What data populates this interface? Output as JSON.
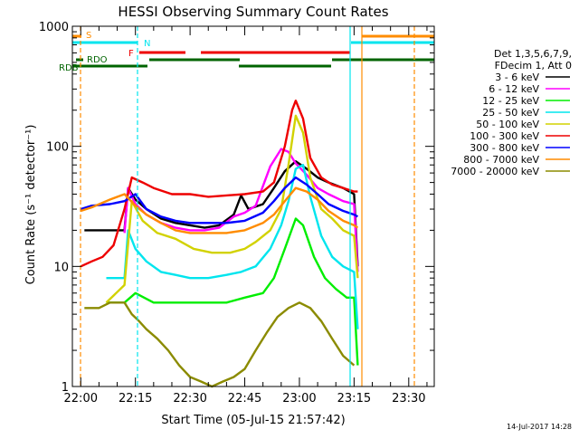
{
  "chart_data": {
    "type": "line",
    "title": "HESSI Observing Summary Count Rates",
    "xlabel": "Start Time (05-Jul-15 21:57:42)",
    "ylabel": "Count Rate (s⁻¹ detector⁻¹)",
    "y_scale": "log",
    "ylim": [
      1,
      1000
    ],
    "xlim": [
      "21:57:42",
      "23:37:00"
    ],
    "x_ticks": [
      "22:00",
      "22:15",
      "22:30",
      "22:45",
      "23:00",
      "23:15",
      "23:30"
    ],
    "y_ticks": [
      "1",
      "10",
      "100",
      "1000"
    ],
    "legend": {
      "placement": "right",
      "header": [
        "Det 1,3,5,6,7,9,",
        "FDecim 1, Att 0"
      ],
      "entries": [
        {
          "label": "3 - 6 keV",
          "color": "#000000"
        },
        {
          "label": "6 - 12 keV",
          "color": "#ff00ff"
        },
        {
          "label": "12 - 25 keV",
          "color": "#00ee00"
        },
        {
          "label": "25 - 50 keV",
          "color": "#00e5ee"
        },
        {
          "label": "50 - 100 keV",
          "color": "#d2d200"
        },
        {
          "label": "100 - 300 keV",
          "color": "#ee0000"
        },
        {
          "label": "300 - 800 keV",
          "color": "#0000ff"
        },
        {
          "label": "800 - 7000 keV",
          "color": "#ff8c00"
        },
        {
          "label": "7000 - 20000 keV",
          "color": "#8b8b00"
        }
      ]
    },
    "flag_labels": {
      "S": "S",
      "N": "N",
      "F": "F",
      "RDO": "RDO",
      "RDB": "RDB"
    },
    "series": [
      {
        "name": "3 - 6 keV",
        "color": "#000000",
        "x": [
          "22:01",
          "22:06",
          "22:12",
          "22:13",
          "22:15",
          "22:18",
          "22:22",
          "22:26",
          "22:30",
          "22:34",
          "22:38",
          "22:42",
          "22:44",
          "22:46",
          "22:50",
          "22:53",
          "22:56",
          "22:59",
          "23:02",
          "23:05",
          "23:08",
          "23:12",
          "23:15",
          "23:16"
        ],
        "y": [
          20,
          20,
          20,
          45,
          36,
          30,
          25,
          23,
          22,
          21,
          22,
          27,
          39,
          30,
          33,
          45,
          62,
          75,
          65,
          55,
          50,
          45,
          40,
          10
        ]
      },
      {
        "name": "6 - 12 keV",
        "color": "#ff00ff",
        "x": [
          "22:12",
          "22:13",
          "22:15",
          "22:18",
          "22:22",
          "22:26",
          "22:30",
          "22:34",
          "22:38",
          "22:42",
          "22:45",
          "22:48",
          "22:52",
          "22:55",
          "22:57",
          "22:59",
          "23:02",
          "23:05",
          "23:08",
          "23:12",
          "23:15",
          "23:16"
        ],
        "y": [
          19,
          45,
          33,
          27,
          23,
          21,
          20,
          20,
          21,
          26,
          28,
          32,
          68,
          95,
          90,
          72,
          58,
          45,
          40,
          35,
          33,
          9
        ]
      },
      {
        "name": "12 - 25 keV",
        "color": "#00ee00",
        "x": [
          "22:07",
          "22:12",
          "22:15",
          "22:20",
          "22:25",
          "22:30",
          "22:35",
          "22:40",
          "22:45",
          "22:50",
          "22:53",
          "22:56",
          "22:59",
          "23:01",
          "23:04",
          "23:07",
          "23:10",
          "23:13",
          "23:15",
          "23:16"
        ],
        "y": [
          5,
          5,
          6,
          5,
          5,
          5,
          5,
          5,
          5.5,
          6,
          8,
          14,
          25,
          22,
          12,
          8,
          6.5,
          5.5,
          5.5,
          1.5
        ]
      },
      {
        "name": "25 - 50 keV",
        "color": "#00e5ee",
        "x": [
          "22:07",
          "22:12",
          "22:13",
          "22:15",
          "22:18",
          "22:22",
          "22:26",
          "22:30",
          "22:35",
          "22:40",
          "22:44",
          "22:48",
          "22:52",
          "22:55",
          "22:57",
          "22:59",
          "23:01",
          "23:03",
          "23:06",
          "23:09",
          "23:12",
          "23:15",
          "23:16"
        ],
        "y": [
          8,
          8,
          20,
          14,
          11,
          9,
          8.5,
          8,
          8,
          8.5,
          9,
          10,
          14,
          22,
          35,
          65,
          70,
          38,
          18,
          12,
          10,
          9,
          3
        ]
      },
      {
        "name": "50 - 100 keV",
        "color": "#d2d200",
        "x": [
          "22:07",
          "22:12",
          "22:14",
          "22:17",
          "22:21",
          "22:26",
          "22:31",
          "22:36",
          "22:41",
          "22:45",
          "22:48",
          "22:52",
          "22:55",
          "22:57",
          "22:59",
          "23:01",
          "23:03",
          "23:06",
          "23:09",
          "23:12",
          "23:15",
          "23:16"
        ],
        "y": [
          5,
          7,
          35,
          24,
          19,
          17,
          14,
          13,
          13,
          14,
          16,
          20,
          30,
          70,
          180,
          130,
          55,
          30,
          25,
          20,
          18,
          8
        ]
      },
      {
        "name": "100 - 300 keV",
        "color": "#ee0000",
        "x": [
          "22:00",
          "22:03",
          "22:06",
          "22:09",
          "22:12",
          "22:14",
          "22:17",
          "22:20",
          "22:25",
          "22:30",
          "22:35",
          "22:40",
          "22:45",
          "22:50",
          "22:53",
          "22:56",
          "22:58",
          "22:59",
          "23:01",
          "23:03",
          "23:06",
          "23:09",
          "23:12",
          "23:15",
          "23:16"
        ],
        "y": [
          10,
          11,
          12,
          15,
          30,
          55,
          50,
          45,
          40,
          40,
          38,
          39,
          40,
          42,
          50,
          100,
          200,
          240,
          170,
          80,
          55,
          48,
          45,
          42,
          42
        ]
      },
      {
        "name": "300 - 800 keV",
        "color": "#0000ff",
        "x": [
          "22:00",
          "22:03",
          "22:08",
          "22:12",
          "22:15",
          "22:18",
          "22:22",
          "22:26",
          "22:30",
          "22:35",
          "22:40",
          "22:45",
          "22:50",
          "22:53",
          "22:56",
          "22:59",
          "23:02",
          "23:05",
          "23:08",
          "23:12",
          "23:15",
          "23:16"
        ],
        "y": [
          30,
          32,
          33,
          35,
          40,
          30,
          26,
          24,
          23,
          23,
          23,
          24,
          28,
          35,
          45,
          55,
          48,
          40,
          33,
          29,
          27,
          26
        ]
      },
      {
        "name": "800 - 7000 keV",
        "color": "#ff8c00",
        "x": [
          "22:00",
          "22:03",
          "22:08",
          "22:12",
          "22:15",
          "22:18",
          "22:22",
          "22:26",
          "22:30",
          "22:35",
          "22:40",
          "22:45",
          "22:50",
          "22:53",
          "22:56",
          "22:59",
          "23:02",
          "23:05",
          "23:08",
          "23:12",
          "23:15",
          "23:16"
        ],
        "y": [
          29,
          31,
          36,
          40,
          32,
          27,
          23,
          20,
          19,
          19,
          19,
          20,
          23,
          27,
          35,
          45,
          42,
          36,
          29,
          24,
          22,
          21
        ]
      },
      {
        "name": "7000 - 20000 keV",
        "color": "#8b8b00",
        "x": [
          "22:01",
          "22:05",
          "22:08",
          "22:12",
          "22:14",
          "22:16",
          "22:18",
          "22:21",
          "22:24",
          "22:27",
          "22:30",
          "22:33",
          "22:36",
          "22:39",
          "22:42",
          "22:45",
          "22:48",
          "22:51",
          "22:54",
          "22:57",
          "23:00",
          "23:03",
          "23:06",
          "23:09",
          "23:12",
          "23:15"
        ],
        "y": [
          4.5,
          4.5,
          5,
          5,
          4,
          3.5,
          3,
          2.5,
          2,
          1.5,
          1.2,
          1.1,
          1,
          1.1,
          1.2,
          1.4,
          2,
          2.8,
          3.8,
          4.5,
          5,
          4.5,
          3.5,
          2.5,
          1.8,
          1.5
        ]
      }
    ]
  },
  "footer": {
    "timestamp": "14-Jul-2017 14:28"
  }
}
